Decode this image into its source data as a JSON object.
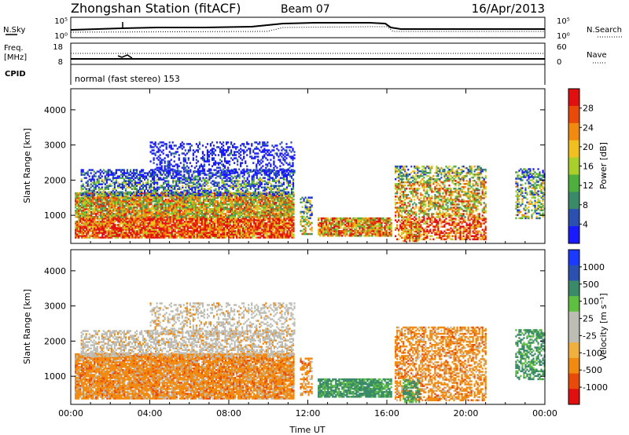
{
  "header": {
    "station": "Zhongshan Station (fitACF)",
    "beam": "Beam 07",
    "date": "16/Apr/2013"
  },
  "colors": {
    "power_scale": [
      "#1a1aff",
      "#2a50b0",
      "#3a8a6a",
      "#4faf3e",
      "#a8cf2a",
      "#f0c020",
      "#f08a10",
      "#e84a0a",
      "#e01010"
    ],
    "velocity_scale": [
      "#e01010",
      "#e84a0a",
      "#f08a10",
      "#f0b040",
      "#bdbdb5",
      "#bdbdb5",
      "#5fbf40",
      "#3a8a6a",
      "#2a50b0",
      "#1a3aff"
    ]
  },
  "panels": {
    "nsky": {
      "label": "N.Sky",
      "ticks": [
        "10^5",
        "10^0"
      ],
      "right_label": "N.Search",
      "right_ticks": [
        "10^5",
        "10^0"
      ]
    },
    "freq": {
      "label": "Freq.",
      "unit": "[MHz]",
      "ticks": [
        "18",
        "8"
      ],
      "right_label": "Nave",
      "right_ticks": [
        "60",
        "0"
      ]
    },
    "cpid": {
      "label": "CPID",
      "text": "normal (fast stereo) 153"
    }
  },
  "chart_data": [
    {
      "type": "heatmap",
      "title": "",
      "xlabel": "",
      "ylabel": "Slant Range [km]",
      "x_ticks": [
        "00:00",
        "04:00",
        "08:00",
        "12:00",
        "16:00",
        "20:00",
        "00:00"
      ],
      "y_ticks": [
        "1000",
        "2000",
        "3000",
        "4000"
      ],
      "xlim_hours": [
        0,
        24
      ],
      "ylim_km": [
        200,
        4600
      ],
      "colorbar": {
        "label": "Power [dB]",
        "ticks": [
          "4",
          "8",
          "12",
          "16",
          "20",
          "24",
          "28"
        ],
        "range": [
          0,
          30
        ]
      }
    },
    {
      "type": "heatmap",
      "title": "",
      "xlabel": "Time UT",
      "ylabel": "Slant Range [km]",
      "x_ticks": [
        "00:00",
        "04:00",
        "08:00",
        "12:00",
        "16:00",
        "20:00",
        "00:00"
      ],
      "y_ticks": [
        "1000",
        "2000",
        "3000",
        "4000"
      ],
      "xlim_hours": [
        0,
        24
      ],
      "ylim_km": [
        200,
        4600
      ],
      "colorbar": {
        "label": "Velocity [m s⁻¹]",
        "ticks": [
          "1000",
          "500",
          "100",
          "25",
          "-25",
          "-100",
          "-500",
          "-1000"
        ]
      }
    }
  ]
}
